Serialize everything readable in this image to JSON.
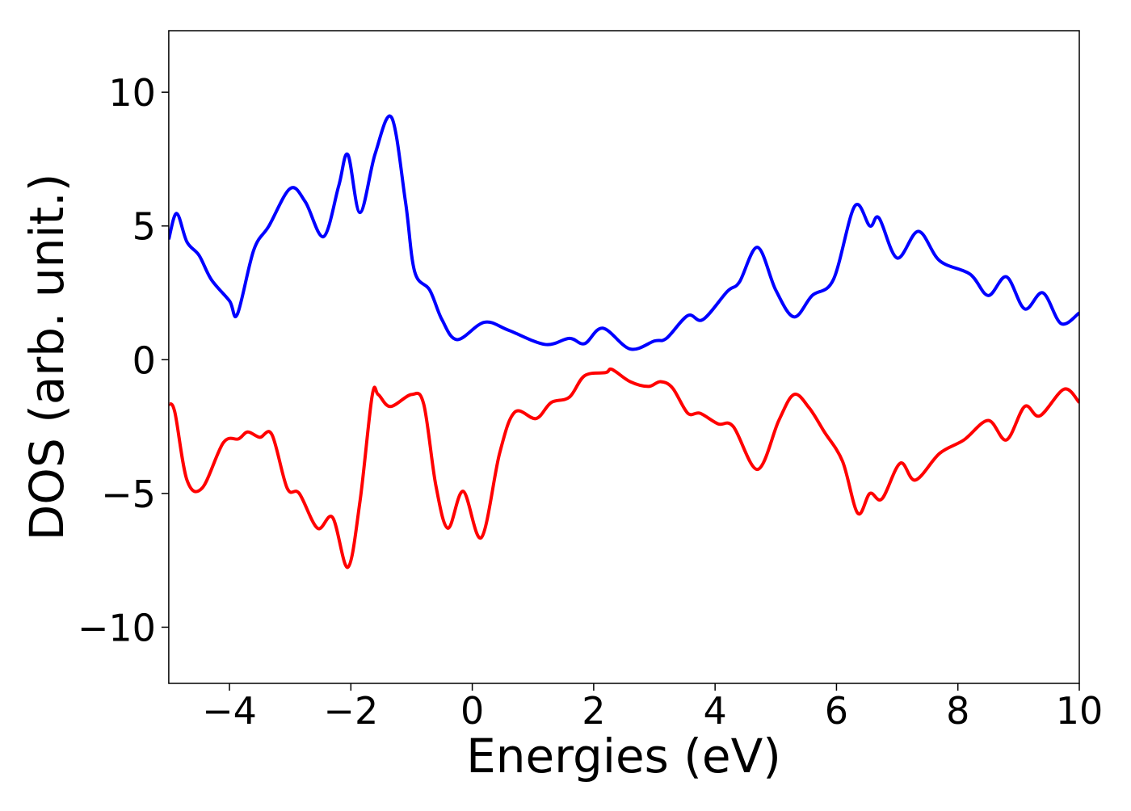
{
  "chart_data": {
    "type": "line",
    "xlabel": "Energies (eV)",
    "ylabel": "DOS (arb. unit.)",
    "xlim": [
      -5,
      10
    ],
    "ylim": [
      -12.1,
      12.3
    ],
    "xticks": [
      {
        "value": -4,
        "label": "−4"
      },
      {
        "value": -2,
        "label": "−2"
      },
      0,
      2,
      4,
      6,
      8,
      10
    ],
    "yticks": [
      {
        "value": -10,
        "label": "−10"
      },
      {
        "value": -5,
        "label": "−5"
      },
      0,
      5,
      10
    ],
    "grid": false,
    "series": [
      {
        "color": "#0000ff",
        "x": [
          -5,
          -4.87,
          -4.7,
          -4.5,
          -4.3,
          -4.0,
          -3.87,
          -3.6,
          -3.35,
          -3.0,
          -2.75,
          -2.45,
          -2.2,
          -2.05,
          -1.85,
          -1.6,
          -1.33,
          -1.1,
          -0.95,
          -0.7,
          -0.5,
          -0.25,
          0.2,
          0.6,
          1.2,
          1.6,
          1.85,
          2.15,
          2.6,
          3.0,
          3.2,
          3.55,
          3.8,
          4.2,
          4.4,
          4.7,
          5.0,
          5.3,
          5.6,
          5.95,
          6.3,
          6.55,
          6.7,
          7.0,
          7.35,
          7.7,
          8.2,
          8.5,
          8.8,
          9.1,
          9.4,
          9.7,
          10
        ],
        "values": [
          4.5,
          5.47,
          4.4,
          3.9,
          3.0,
          2.2,
          1.7,
          4.1,
          5.0,
          6.4,
          5.9,
          4.6,
          6.5,
          7.67,
          5.5,
          7.7,
          9.06,
          5.9,
          3.3,
          2.6,
          1.5,
          0.75,
          1.4,
          1.1,
          0.57,
          0.8,
          0.6,
          1.18,
          0.4,
          0.7,
          0.8,
          1.65,
          1.5,
          2.55,
          2.9,
          4.2,
          2.6,
          1.6,
          2.4,
          3.0,
          5.74,
          5.0,
          5.3,
          3.8,
          4.8,
          3.7,
          3.2,
          2.4,
          3.1,
          1.9,
          2.5,
          1.35,
          1.75
        ]
      },
      {
        "color": "#ff0000",
        "x": [
          -5,
          -4.9,
          -4.7,
          -4.45,
          -4.1,
          -3.85,
          -3.7,
          -3.5,
          -3.3,
          -3.05,
          -2.85,
          -2.55,
          -2.3,
          -2.05,
          -1.85,
          -1.65,
          -1.55,
          -1.35,
          -1.0,
          -0.8,
          -0.6,
          -0.4,
          -0.15,
          0.15,
          0.45,
          0.7,
          1.05,
          1.3,
          1.6,
          1.85,
          2.2,
          2.3,
          2.6,
          2.9,
          3.1,
          3.3,
          3.55,
          3.75,
          4.05,
          4.3,
          4.7,
          5.05,
          5.3,
          5.55,
          5.8,
          6.1,
          6.35,
          6.55,
          6.75,
          7.05,
          7.3,
          7.7,
          8.1,
          8.5,
          8.8,
          9.1,
          9.35,
          9.75,
          10
        ],
        "values": [
          -1.66,
          -1.96,
          -4.5,
          -4.8,
          -3.1,
          -2.96,
          -2.7,
          -2.9,
          -2.8,
          -4.8,
          -5.0,
          -6.3,
          -5.9,
          -7.76,
          -5.3,
          -1.36,
          -1.3,
          -1.75,
          -1.3,
          -1.66,
          -4.7,
          -6.3,
          -4.92,
          -6.65,
          -3.5,
          -1.96,
          -2.2,
          -1.6,
          -1.4,
          -0.6,
          -0.48,
          -0.36,
          -0.82,
          -1.0,
          -0.82,
          -1.06,
          -2.0,
          -2.0,
          -2.4,
          -2.5,
          -4.1,
          -2.27,
          -1.3,
          -1.8,
          -2.7,
          -3.8,
          -5.74,
          -5.0,
          -5.2,
          -3.87,
          -4.5,
          -3.5,
          -3.0,
          -2.27,
          -3.0,
          -1.75,
          -2.1,
          -1.1,
          -1.6
        ]
      }
    ]
  }
}
